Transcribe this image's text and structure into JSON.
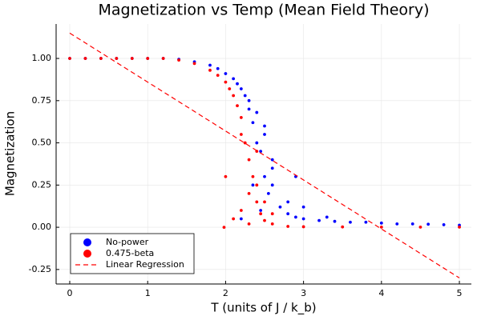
{
  "chart_data": {
    "type": "scatter",
    "title": "Magnetization vs Temp (Mean Field Theory)",
    "x_label": "T (units of J / k_b)",
    "y_label": "Magnetization",
    "xlim": [
      -0.175,
      5.154
    ],
    "ylim": [
      -0.336,
      1.204
    ],
    "xticks": [
      0,
      1,
      2,
      3,
      4,
      5
    ],
    "yticks": [
      {
        "value": -0.25,
        "label": "-0.25"
      },
      {
        "value": 0,
        "label": "0.00"
      },
      {
        "value": 0.25,
        "label": "0.25"
      },
      {
        "value": 0.5,
        "label": "0.50"
      },
      {
        "value": 0.75,
        "label": "0.75"
      },
      {
        "value": 1,
        "label": "1.00"
      }
    ],
    "grid": true,
    "legend": "bottom-left",
    "series": [
      {
        "name": "No-power",
        "color": "#0000ff",
        "kind": "scatter",
        "x": [
          0,
          0.2,
          0.4,
          0.6,
          0.8,
          1.0,
          1.2,
          1.4,
          1.6,
          1.8,
          1.9,
          2.0,
          2.1,
          2.15,
          2.2,
          2.25,
          2.3,
          2.3,
          2.35,
          2.4,
          2.4,
          2.45,
          2.5,
          2.5,
          2.55,
          2.6,
          2.6,
          2.7,
          2.8,
          2.9,
          3.0,
          3.2,
          3.4,
          3.6,
          3.8,
          4.0,
          4.2,
          4.4,
          4.6,
          4.8,
          5.0,
          2.2,
          2.35,
          2.5,
          2.45,
          2.6,
          2.8,
          3.0,
          2.9,
          3.3
        ],
        "values": [
          1,
          1,
          1,
          1,
          1,
          1,
          1,
          0.995,
          0.98,
          0.96,
          0.94,
          0.91,
          0.88,
          0.85,
          0.82,
          0.78,
          0.7,
          0.75,
          0.62,
          0.5,
          0.68,
          0.45,
          0.3,
          0.55,
          0.2,
          0.35,
          0.25,
          0.12,
          0.08,
          0.06,
          0.05,
          0.04,
          0.035,
          0.03,
          0.03,
          0.025,
          0.02,
          0.02,
          0.018,
          0.015,
          0.012,
          0.05,
          0.25,
          0.6,
          0.1,
          0.4,
          0.15,
          0.12,
          0.3,
          0.06
        ]
      },
      {
        "name": "0.475-beta",
        "color": "#ff0000",
        "kind": "scatter",
        "x": [
          0,
          0.2,
          0.4,
          0.6,
          0.8,
          1.0,
          1.2,
          1.4,
          1.6,
          1.8,
          1.9,
          2.0,
          2.05,
          2.1,
          2.15,
          2.2,
          2.2,
          2.25,
          2.3,
          2.3,
          2.35,
          2.4,
          2.4,
          2.45,
          2.5,
          2.6,
          2.8,
          3.0,
          3.5,
          4.0,
          4.5,
          5.0,
          1.98,
          2.0,
          2.1,
          2.2,
          2.3,
          2.4,
          2.5,
          2.6
        ],
        "values": [
          1,
          1,
          1,
          1,
          1,
          1,
          1,
          0.99,
          0.97,
          0.93,
          0.9,
          0.86,
          0.82,
          0.78,
          0.72,
          0.65,
          0.55,
          0.5,
          0.4,
          0.2,
          0.3,
          0.15,
          0.25,
          0.08,
          0.04,
          0.02,
          0.005,
          0.003,
          0.002,
          0.001,
          0.001,
          0.001,
          0,
          0.3,
          0.05,
          0.1,
          0.02,
          0.45,
          0.15,
          0.08
        ]
      },
      {
        "name": "Linear Regression",
        "color": "#ff0000",
        "kind": "line",
        "dash": "dashed",
        "x": [
          0,
          5
        ],
        "values": [
          1.15,
          -0.3
        ]
      }
    ]
  }
}
